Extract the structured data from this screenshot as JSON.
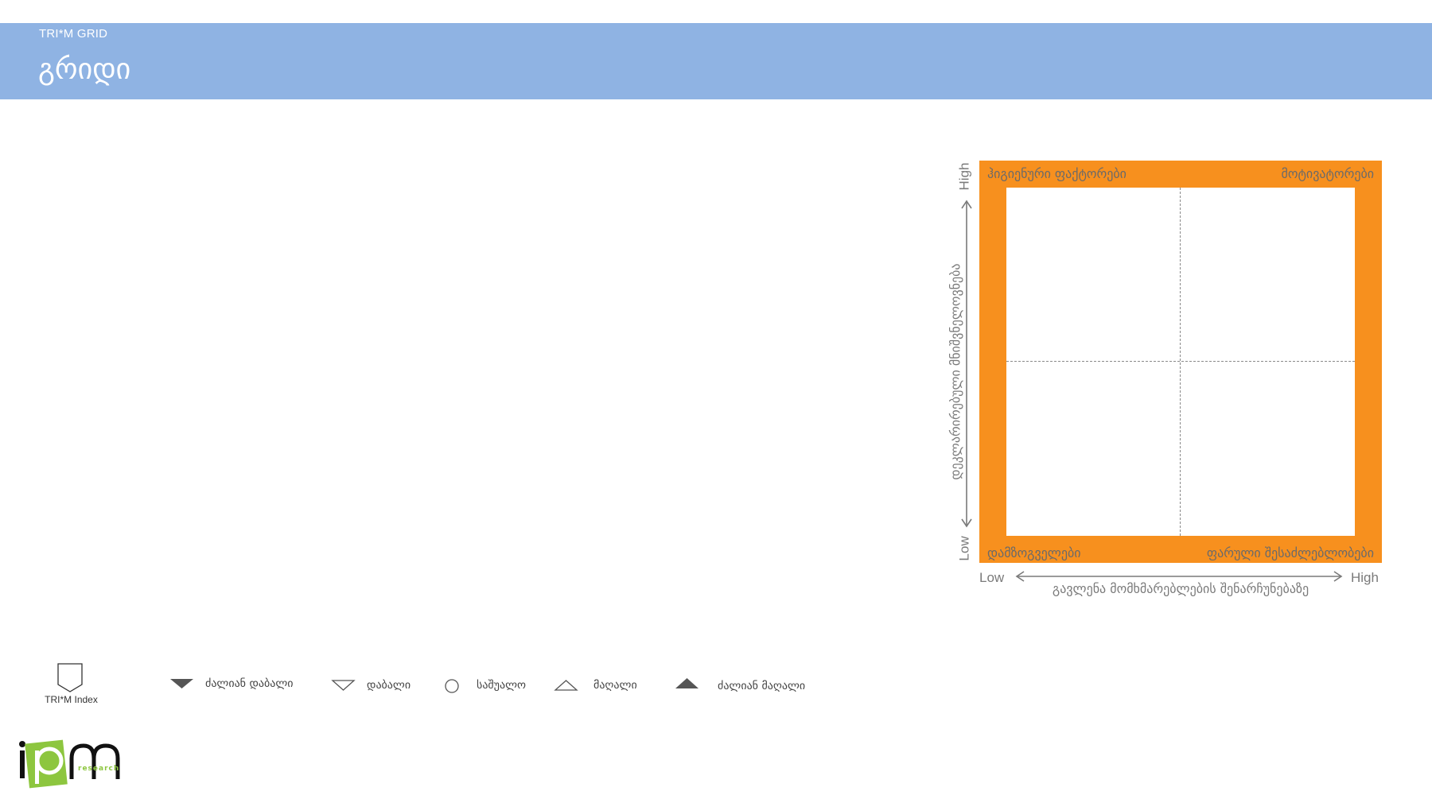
{
  "header": {
    "subtitle": "TRI*M GRID",
    "title": "გრიდი"
  },
  "grid": {
    "quadrants": {
      "top_left": "ჰიგიენური ფაქტორები",
      "top_right": "მოტივატორები",
      "bottom_left": "დამზოგველები",
      "bottom_right": "ფარული შესაძლებლობები"
    },
    "x_axis": {
      "low": "Low",
      "high": "High",
      "label": "გავლენა მომხმარებლების შენარჩუნებაზე"
    },
    "y_axis": {
      "low": "Low",
      "high": "High",
      "label": "დეკლარირებული მნიშვნელოვნება"
    },
    "colors": {
      "frame": "#f7901e",
      "header": "#8fb3e3"
    }
  },
  "legend": {
    "index_label": "TRI*M Index",
    "items": [
      {
        "label": "ძალიან დაბალი",
        "icon": "filled-down-triangle-icon"
      },
      {
        "label": "დაბალი",
        "icon": "outline-down-triangle-icon"
      },
      {
        "label": "საშუალო",
        "icon": "circle-icon"
      },
      {
        "label": "მაღალი",
        "icon": "outline-up-triangle-icon"
      },
      {
        "label": "ძალიან მაღალი",
        "icon": "filled-up-triangle-icon"
      }
    ]
  },
  "logo": {
    "text": "research"
  }
}
